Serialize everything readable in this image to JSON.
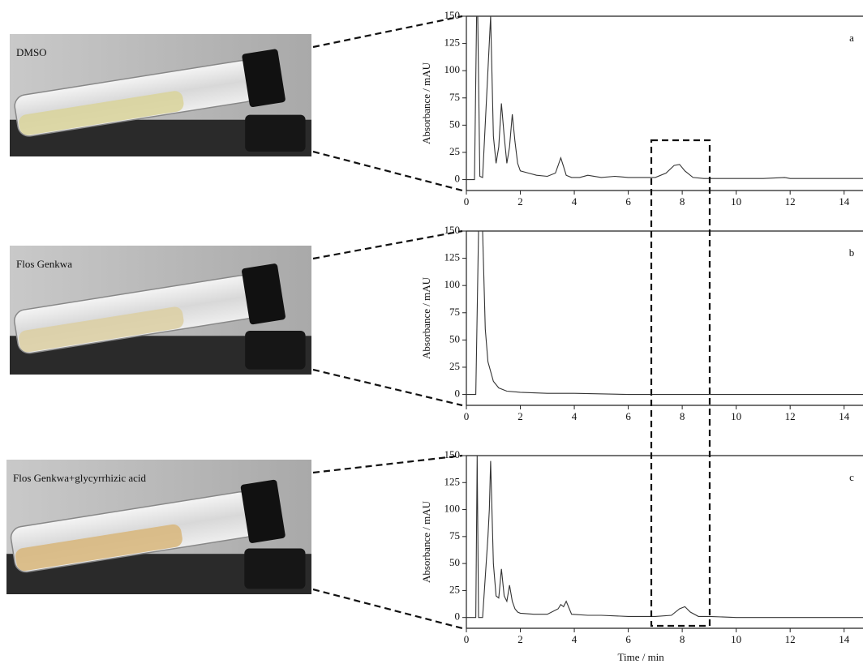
{
  "chart_data": [
    {
      "type": "line",
      "annotation": "a",
      "sample": "DMSO",
      "y_label": "Absorbance / mAU",
      "x": [
        0,
        0.3,
        0.38,
        0.42,
        0.5,
        0.6,
        0.9,
        1.0,
        1.1,
        1.2,
        1.3,
        1.4,
        1.5,
        1.6,
        1.7,
        1.8,
        1.9,
        2.0,
        2.3,
        2.6,
        3.0,
        3.3,
        3.5,
        3.6,
        3.7,
        3.9,
        4.2,
        4.5,
        5,
        5.5,
        6,
        6.5,
        7,
        7.4,
        7.7,
        7.9,
        8.1,
        8.4,
        8.8,
        9.5,
        10,
        11,
        11.8,
        12,
        13,
        14.7
      ],
      "values": [
        0,
        0,
        150,
        150,
        3,
        2,
        150,
        40,
        15,
        30,
        70,
        40,
        15,
        30,
        60,
        35,
        15,
        8,
        6,
        4,
        3,
        6,
        20,
        12,
        4,
        2,
        2,
        4,
        2,
        3,
        2,
        2,
        2,
        6,
        13,
        14,
        8,
        2,
        1,
        1,
        1,
        1,
        2,
        1,
        1,
        1
      ],
      "color": "#333333",
      "xlim": [
        0,
        14.7
      ],
      "ylim": [
        -10,
        150
      ],
      "xticks": [
        0,
        2,
        4,
        6,
        8,
        10,
        12,
        14
      ],
      "yticks": [
        0,
        25,
        50,
        75,
        100,
        125,
        150
      ]
    },
    {
      "type": "line",
      "annotation": "b",
      "sample": "Flos Genkwa",
      "y_label": "Absorbance / mAU",
      "x": [
        0,
        0.35,
        0.45,
        0.5,
        0.6,
        0.7,
        0.8,
        1.0,
        1.2,
        1.5,
        2,
        3,
        4,
        6,
        8,
        10,
        12,
        14.7
      ],
      "values": [
        0,
        0,
        150,
        150,
        150,
        60,
        30,
        12,
        6,
        3,
        2,
        1,
        1,
        0,
        0,
        0,
        0,
        0
      ],
      "color": "#333333",
      "xlim": [
        0,
        14.7
      ],
      "ylim": [
        -10,
        150
      ],
      "xticks": [
        0,
        2,
        4,
        6,
        8,
        10,
        12,
        14
      ],
      "yticks": [
        0,
        25,
        50,
        75,
        100,
        125,
        150
      ]
    },
    {
      "type": "line",
      "annotation": "c",
      "sample": "Flos Genkwa+glycyrrhizic acid",
      "y_label": "Absorbance / mAU",
      "x_label": "Time / min",
      "x": [
        0,
        0.35,
        0.4,
        0.45,
        0.6,
        0.8,
        0.85,
        0.9,
        1.0,
        1.1,
        1.2,
        1.3,
        1.4,
        1.5,
        1.6,
        1.7,
        1.8,
        1.9,
        2.0,
        2.5,
        3.0,
        3.4,
        3.5,
        3.6,
        3.7,
        3.9,
        4.5,
        5,
        6,
        7,
        7.6,
        7.9,
        8.1,
        8.3,
        8.6,
        9,
        10,
        12,
        14.7
      ],
      "values": [
        0,
        0,
        150,
        0,
        0,
        75,
        100,
        145,
        50,
        20,
        18,
        45,
        20,
        15,
        30,
        15,
        8,
        5,
        4,
        3,
        3,
        8,
        12,
        10,
        15,
        3,
        2,
        2,
        1,
        1,
        2,
        8,
        10,
        5,
        1,
        1,
        0,
        0,
        0
      ],
      "color": "#333333",
      "xlim": [
        0,
        14.7
      ],
      "ylim": [
        -10,
        150
      ],
      "xticks": [
        0,
        2,
        4,
        6,
        8,
        10,
        12,
        14
      ],
      "yticks": [
        0,
        25,
        50,
        75,
        100,
        125,
        150
      ]
    }
  ]
}
